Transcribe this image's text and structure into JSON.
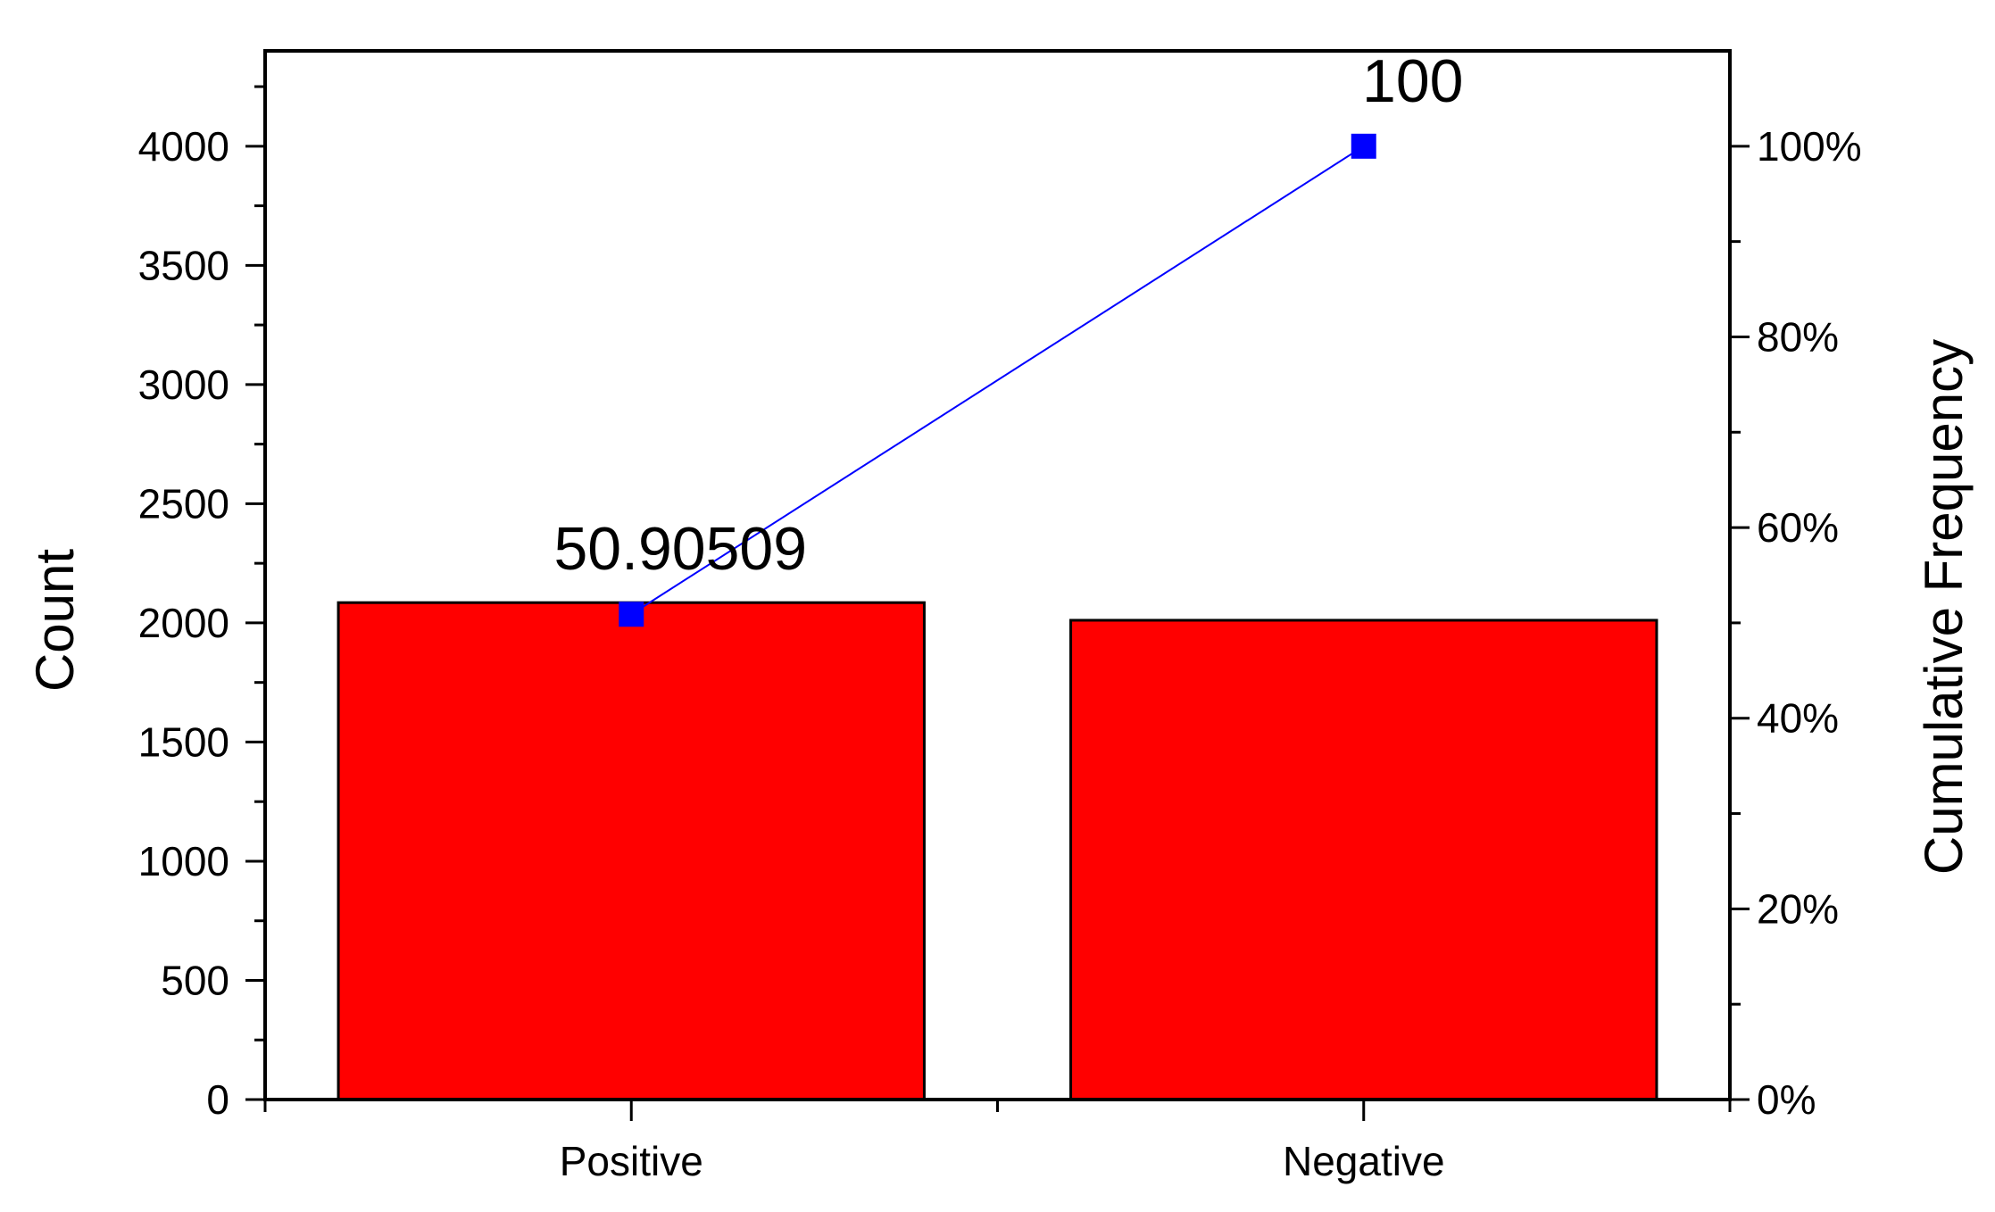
{
  "chart_data": {
    "type": "bar",
    "categories": [
      "Positive",
      "Negative"
    ],
    "series": [
      {
        "values": [
          2085,
          2011
        ]
      }
    ],
    "line_series": [
      {
        "values": [
          50.90509,
          100
        ]
      }
    ],
    "data_labels": [
      "50.90509",
      "100"
    ],
    "ylabel": "Count",
    "y2label": "Cumulative Frequency",
    "ylim": [
      0,
      4400
    ],
    "y_ticks": [
      0,
      500,
      1000,
      1500,
      2000,
      2500,
      3000,
      3500,
      4000
    ],
    "y2lim": [
      0,
      110
    ],
    "y2_ticks": [
      0,
      20,
      40,
      60,
      80,
      100
    ],
    "y2_tick_labels": [
      "0%",
      "20%",
      "40%",
      "60%",
      "80%",
      "100%"
    ],
    "bar_color": "#ff0000",
    "line_color": "#0000ff",
    "grid": false,
    "legend": "none"
  }
}
